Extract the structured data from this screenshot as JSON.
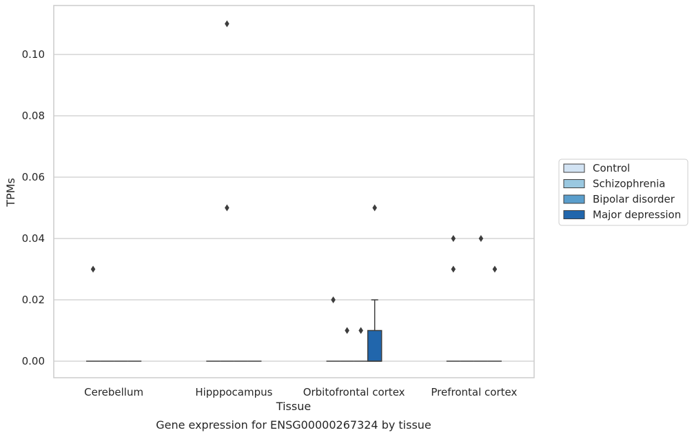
{
  "chart_data": {
    "type": "box",
    "title": "",
    "caption": "Gene expression for ENSG00000267324 by tissue",
    "xlabel": "Tissue",
    "ylabel": "TPMs",
    "ylim": [
      -0.0055,
      0.1155
    ],
    "yticks": [
      0.0,
      0.02,
      0.04,
      0.06,
      0.08,
      0.1
    ],
    "ytick_labels": [
      "0.00",
      "0.02",
      "0.04",
      "0.06",
      "0.08",
      "0.10"
    ],
    "grid": "horizontal",
    "legend_position": "right",
    "categories": [
      "Cerebellum",
      "Hipppocampus",
      "Orbitofrontal cortex",
      "Prefrontal cortex"
    ],
    "series": [
      {
        "name": "Control",
        "color": "#d2e3f3",
        "boxes": [
          {
            "q1": 0,
            "median": 0,
            "q3": 0,
            "whislo": 0,
            "whishi": 0,
            "fliers": [
              0.03
            ]
          },
          {
            "q1": 0,
            "median": 0,
            "q3": 0,
            "whislo": 0,
            "whishi": 0,
            "fliers": []
          },
          {
            "q1": 0,
            "median": 0,
            "q3": 0,
            "whislo": 0,
            "whishi": 0,
            "fliers": [
              0.02
            ]
          },
          {
            "q1": 0,
            "median": 0,
            "q3": 0,
            "whislo": 0,
            "whishi": 0,
            "fliers": [
              0.04,
              0.03
            ]
          }
        ]
      },
      {
        "name": "Schizophrenia",
        "color": "#9ac8e0",
        "boxes": [
          {
            "q1": 0,
            "median": 0,
            "q3": 0,
            "whislo": 0,
            "whishi": 0,
            "fliers": []
          },
          {
            "q1": 0,
            "median": 0,
            "q3": 0,
            "whislo": 0,
            "whishi": 0,
            "fliers": [
              0.11,
              0.05
            ]
          },
          {
            "q1": 0,
            "median": 0,
            "q3": 0,
            "whislo": 0,
            "whishi": 0,
            "fliers": [
              0.01
            ]
          },
          {
            "q1": 0,
            "median": 0,
            "q3": 0,
            "whislo": 0,
            "whishi": 0,
            "fliers": []
          }
        ]
      },
      {
        "name": "Bipolar disorder",
        "color": "#5a9ecc",
        "boxes": [
          {
            "q1": 0,
            "median": 0,
            "q3": 0,
            "whislo": 0,
            "whishi": 0,
            "fliers": []
          },
          {
            "q1": 0,
            "median": 0,
            "q3": 0,
            "whislo": 0,
            "whishi": 0,
            "fliers": []
          },
          {
            "q1": 0,
            "median": 0,
            "q3": 0,
            "whislo": 0,
            "whishi": 0,
            "fliers": [
              0.01
            ]
          },
          {
            "q1": 0,
            "median": 0,
            "q3": 0,
            "whislo": 0,
            "whishi": 0,
            "fliers": [
              0.04
            ]
          }
        ]
      },
      {
        "name": "Major depression",
        "color": "#2166ac",
        "boxes": [
          {
            "q1": 0,
            "median": 0,
            "q3": 0,
            "whislo": 0,
            "whishi": 0,
            "fliers": []
          },
          {
            "q1": 0,
            "median": 0,
            "q3": 0,
            "whislo": 0,
            "whishi": 0,
            "fliers": []
          },
          {
            "q1": 0,
            "median": 0,
            "q3": 0.01,
            "whislo": 0,
            "whishi": 0.02,
            "fliers": [
              0.05
            ]
          },
          {
            "q1": 0,
            "median": 0,
            "q3": 0,
            "whislo": 0,
            "whishi": 0,
            "fliers": [
              0.03
            ]
          }
        ]
      }
    ]
  },
  "colors": {
    "grid": "#cccccc",
    "frame": "#cccccc",
    "box_edge": "#3d3d3d",
    "text": "#262626"
  }
}
